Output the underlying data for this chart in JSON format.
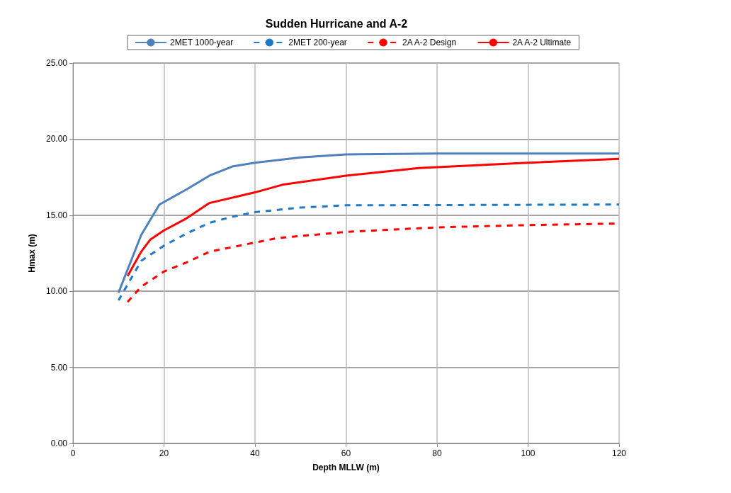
{
  "chart_data": {
    "type": "line",
    "title": "Sudden Hurricane and A-2",
    "xlabel": "Depth MLLW (m)",
    "ylabel": "Hmax (m)",
    "xlim": [
      0,
      120
    ],
    "xticks": [
      0,
      20,
      40,
      60,
      80,
      100,
      120
    ],
    "ylim": [
      0,
      25
    ],
    "yticks": [
      {
        "value": 0,
        "label": "0.00"
      },
      {
        "value": 5,
        "label": "5.00"
      },
      {
        "value": 10,
        "label": "10.00"
      },
      {
        "value": 15,
        "label": "15.00"
      },
      {
        "value": 20,
        "label": "20.00"
      },
      {
        "value": 25,
        "label": "25.00"
      }
    ],
    "grid": true,
    "legend": "top",
    "marker": "none",
    "series": [
      {
        "name": "2MET 1000-year",
        "color": "#4f81bd",
        "line_style": "solid",
        "x": [
          10,
          15,
          19,
          25,
          30,
          35,
          40,
          50,
          60,
          80,
          120
        ],
        "values": [
          9.9,
          13.7,
          15.7,
          16.7,
          17.6,
          18.2,
          18.45,
          18.8,
          19.0,
          19.05,
          19.05
        ]
      },
      {
        "name": "2MET 200-year",
        "color": "#1f78c8",
        "line_style": "dashed",
        "x": [
          10,
          15,
          20,
          25,
          30,
          35,
          40,
          50,
          60,
          120
        ],
        "values": [
          9.4,
          12.0,
          13.0,
          13.8,
          14.5,
          14.9,
          15.2,
          15.5,
          15.65,
          15.7
        ]
      },
      {
        "name": "2A A-2 Design",
        "color": "#ff0000",
        "line_style": "dashed",
        "x": [
          12,
          15,
          20,
          25,
          30,
          40,
          45,
          60,
          80,
          100,
          120
        ],
        "values": [
          9.3,
          10.3,
          11.3,
          11.9,
          12.6,
          13.2,
          13.5,
          13.9,
          14.2,
          14.35,
          14.45
        ]
      },
      {
        "name": "2A A-2 Ultimate",
        "color": "#ff0000",
        "line_style": "solid",
        "x": [
          12,
          15,
          17,
          20,
          25,
          30,
          40,
          46,
          60,
          76,
          100,
          120
        ],
        "values": [
          11.0,
          12.6,
          13.4,
          14.0,
          14.8,
          15.8,
          16.5,
          17.0,
          17.6,
          18.1,
          18.45,
          18.7
        ]
      }
    ]
  }
}
